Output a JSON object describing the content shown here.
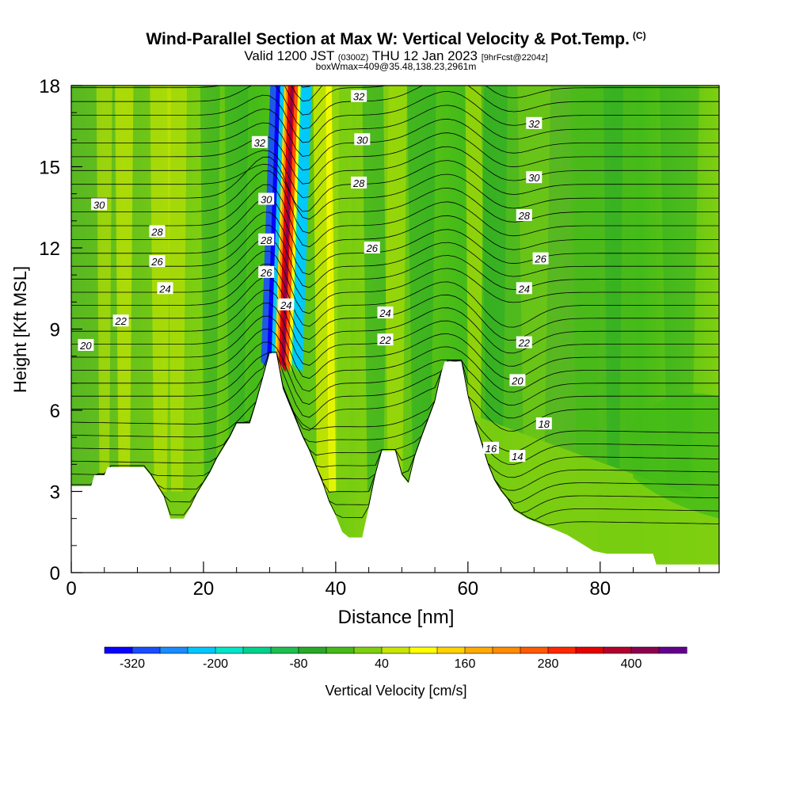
{
  "title": {
    "main": "Wind-Parallel Section at Max W: Vertical Velocity & Pot.Temp.",
    "copyright": "(C)",
    "valid_prefix": "Valid 1200 JST",
    "valid_utc": "(0300Z)",
    "valid_date": "THU 12 Jan 2023",
    "forecast": "[9hrFcst@2204z]",
    "box_info": "boxWmax=409@35.48,138.23,2961m"
  },
  "chart_data": {
    "type": "heatmap",
    "xlabel": "Distance [nm]",
    "ylabel": "Height [Kft MSL]",
    "xlim": [
      0,
      98
    ],
    "ylim": [
      0,
      18
    ],
    "x_ticks": [
      0,
      20,
      40,
      60,
      80
    ],
    "y_ticks": [
      0,
      3,
      6,
      9,
      12,
      15,
      18
    ],
    "terrain_kft": [
      [
        0,
        3.2
      ],
      [
        3,
        3.2
      ],
      [
        3.5,
        3.6
      ],
      [
        5,
        3.6
      ],
      [
        5.5,
        3.9
      ],
      [
        11,
        3.9
      ],
      [
        12,
        3.6
      ],
      [
        14,
        2.8
      ],
      [
        15,
        2.0
      ],
      [
        17,
        2.0
      ],
      [
        18,
        2.4
      ],
      [
        19,
        2.9
      ],
      [
        20,
        3.3
      ],
      [
        21,
        3.7
      ],
      [
        22,
        4.2
      ],
      [
        23,
        4.6
      ],
      [
        24,
        5.0
      ],
      [
        25,
        5.5
      ],
      [
        27,
        5.5
      ],
      [
        28,
        6.3
      ],
      [
        29,
        7.2
      ],
      [
        30,
        8.1
      ],
      [
        31,
        8.1
      ],
      [
        32,
        6.8
      ],
      [
        33,
        6.2
      ],
      [
        34,
        5.6
      ],
      [
        35,
        5.0
      ],
      [
        36,
        4.5
      ],
      [
        37,
        3.9
      ],
      [
        38,
        3.3
      ],
      [
        39,
        2.6
      ],
      [
        40,
        2.1
      ],
      [
        41,
        1.5
      ],
      [
        42,
        1.3
      ],
      [
        44,
        1.3
      ],
      [
        45,
        2.4
      ],
      [
        46,
        3.6
      ],
      [
        47,
        4.5
      ],
      [
        49,
        4.5
      ],
      [
        50,
        3.6
      ],
      [
        51,
        3.3
      ],
      [
        52,
        4.3
      ],
      [
        53,
        5.0
      ],
      [
        55,
        6.3
      ],
      [
        56,
        7.4
      ],
      [
        56.5,
        7.8
      ],
      [
        59,
        7.8
      ],
      [
        60,
        6.5
      ],
      [
        61,
        5.6
      ],
      [
        62,
        4.8
      ],
      [
        63,
        4.0
      ],
      [
        64,
        3.4
      ],
      [
        65,
        3.0
      ],
      [
        66,
        2.7
      ],
      [
        67,
        2.3
      ],
      [
        69,
        2.0
      ],
      [
        71,
        1.8
      ],
      [
        73,
        1.6
      ],
      [
        75,
        1.4
      ],
      [
        77,
        1.1
      ],
      [
        79,
        0.8
      ],
      [
        81,
        0.7
      ],
      [
        88,
        0.7
      ],
      [
        88.5,
        0.3
      ],
      [
        98,
        0.3
      ]
    ],
    "isentropes_K_labels": [
      {
        "value": "30",
        "x": 4.2,
        "y": 13.6
      },
      {
        "value": "28",
        "x": 13,
        "y": 12.6
      },
      {
        "value": "26",
        "x": 13,
        "y": 11.5
      },
      {
        "value": "24",
        "x": 14.2,
        "y": 10.5
      },
      {
        "value": "22",
        "x": 7.5,
        "y": 9.3
      },
      {
        "value": "20",
        "x": 2.2,
        "y": 8.4
      },
      {
        "value": "32",
        "x": 28.5,
        "y": 15.9
      },
      {
        "value": "30",
        "x": 29.5,
        "y": 13.8
      },
      {
        "value": "28",
        "x": 29.5,
        "y": 12.3
      },
      {
        "value": "26",
        "x": 29.5,
        "y": 11.1
      },
      {
        "value": "24",
        "x": 32.5,
        "y": 9.9
      },
      {
        "value": "32",
        "x": 43.5,
        "y": 17.6
      },
      {
        "value": "30",
        "x": 44,
        "y": 16
      },
      {
        "value": "28",
        "x": 43.5,
        "y": 14.4
      },
      {
        "value": "26",
        "x": 45.5,
        "y": 12
      },
      {
        "value": "24",
        "x": 47.5,
        "y": 9.6
      },
      {
        "value": "22",
        "x": 47.5,
        "y": 8.6
      },
      {
        "value": "32",
        "x": 70,
        "y": 16.6
      },
      {
        "value": "30",
        "x": 70,
        "y": 14.6
      },
      {
        "value": "28",
        "x": 68.5,
        "y": 13.2
      },
      {
        "value": "26",
        "x": 71,
        "y": 11.6
      },
      {
        "value": "24",
        "x": 68.5,
        "y": 10.5
      },
      {
        "value": "22",
        "x": 68.5,
        "y": 8.5
      },
      {
        "value": "20",
        "x": 67.5,
        "y": 7.1
      },
      {
        "value": "18",
        "x": 71.5,
        "y": 5.5
      },
      {
        "value": "16",
        "x": 63.5,
        "y": 4.6
      },
      {
        "value": "14",
        "x": 67.5,
        "y": 4.3
      }
    ],
    "colorbar": {
      "label": "Vertical Velocity [cm/s]",
      "tick_labels": [
        "-320",
        "-200",
        "-80",
        "40",
        "160",
        "280",
        "400"
      ],
      "colors": [
        "#0a00ff",
        "#1a4dff",
        "#1a8cff",
        "#00c8ff",
        "#00e6c8",
        "#00d28c",
        "#1ebe50",
        "#28aa28",
        "#44bb18",
        "#7ecf10",
        "#c8e600",
        "#ffff00",
        "#ffd200",
        "#ffaa00",
        "#ff8c00",
        "#ff5a00",
        "#ff2800",
        "#e60000",
        "#b4002d",
        "#8c0050",
        "#640090"
      ]
    }
  }
}
